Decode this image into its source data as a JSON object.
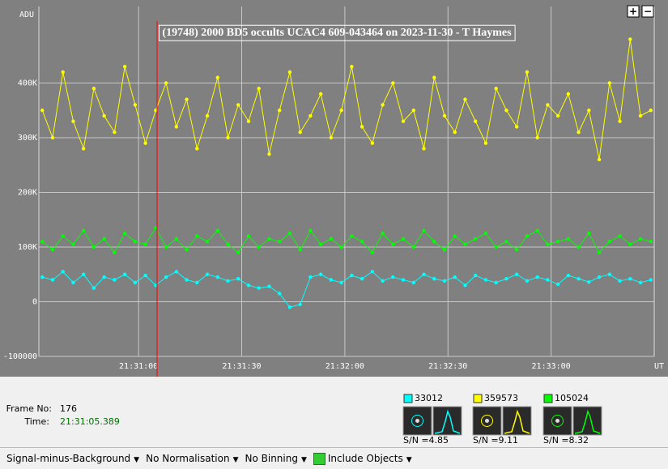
{
  "chart_data": {
    "type": "line",
    "title": "(19748) 2000 BD5 occults UCAC4 609-043464  on  2023-11-30 - T Haymes",
    "y_label": "ADU",
    "x_label": "UT",
    "x": [
      77432,
      77435,
      77438,
      77441,
      77444,
      77447,
      77450,
      77453,
      77456,
      77459,
      77462,
      77465,
      77468,
      77471,
      77474,
      77477,
      77480,
      77483,
      77486,
      77489,
      77492,
      77495,
      77498,
      77501,
      77504,
      77507,
      77510,
      77513,
      77516,
      77519,
      77522,
      77525,
      77528,
      77531,
      77534,
      77537,
      77540,
      77543,
      77546,
      77549,
      77552,
      77555,
      77558,
      77561,
      77564,
      77567,
      77570,
      77573,
      77576,
      77579,
      77582,
      77585,
      77588,
      77591,
      77594,
      77597,
      77600,
      77603,
      77606,
      77609
    ],
    "series": [
      {
        "name": "33012",
        "color": "#00ffff",
        "values": [
          45000,
          40000,
          55000,
          35000,
          50000,
          25000,
          45000,
          40000,
          50000,
          35000,
          48000,
          30000,
          45000,
          55000,
          40000,
          35000,
          50000,
          45000,
          38000,
          42000,
          30000,
          25000,
          28000,
          15000,
          -10000,
          -5000,
          45000,
          50000,
          40000,
          35000,
          48000,
          42000,
          55000,
          38000,
          45000,
          40000,
          35000,
          50000,
          42000,
          38000,
          45000,
          30000,
          48000,
          40000,
          35000,
          42000,
          50000,
          38000,
          45000,
          40000,
          32000,
          48000,
          42000,
          36000,
          45000,
          50000,
          38000,
          42000,
          35000,
          40000
        ]
      },
      {
        "name": "359573",
        "color": "#ffff00",
        "values": [
          350000,
          300000,
          420000,
          330000,
          280000,
          390000,
          340000,
          310000,
          430000,
          360000,
          290000,
          350000,
          400000,
          320000,
          370000,
          280000,
          340000,
          410000,
          300000,
          360000,
          330000,
          390000,
          270000,
          350000,
          420000,
          310000,
          340000,
          380000,
          300000,
          350000,
          430000,
          320000,
          290000,
          360000,
          400000,
          330000,
          350000,
          280000,
          410000,
          340000,
          310000,
          370000,
          330000,
          290000,
          390000,
          350000,
          320000,
          420000,
          300000,
          360000,
          340000,
          380000,
          310000,
          350000,
          260000,
          400000,
          330000,
          480000,
          340000,
          350000
        ]
      },
      {
        "name": "105024",
        "color": "#00ff00",
        "values": [
          110000,
          95000,
          120000,
          105000,
          130000,
          100000,
          115000,
          90000,
          125000,
          110000,
          105000,
          135000,
          100000,
          115000,
          95000,
          120000,
          110000,
          130000,
          105000,
          90000,
          120000,
          100000,
          115000,
          110000,
          125000,
          95000,
          130000,
          105000,
          115000,
          100000,
          120000,
          110000,
          90000,
          125000,
          105000,
          115000,
          100000,
          130000,
          110000,
          95000,
          120000,
          105000,
          115000,
          125000,
          100000,
          110000,
          95000,
          120000,
          130000,
          105000,
          110000,
          115000,
          100000,
          125000,
          90000,
          110000,
          120000,
          105000,
          115000,
          110000
        ]
      }
    ],
    "xlim": [
      77431,
      77610
    ],
    "xticks": [
      {
        "value": 77460,
        "label": "21:31:00"
      },
      {
        "value": 77490,
        "label": "21:31:30"
      },
      {
        "value": 77520,
        "label": "21:32:00"
      },
      {
        "value": 77550,
        "label": "21:32:30"
      },
      {
        "value": 77580,
        "label": "21:33:00"
      }
    ],
    "ylim": [
      -100000,
      540000
    ],
    "yticks": [
      -100000,
      0,
      {
        "value": 100000,
        "label": "100K"
      },
      {
        "value": 200000,
        "label": "200K"
      },
      {
        "value": 300000,
        "label": "300K"
      },
      {
        "value": 400000,
        "label": "400K"
      }
    ],
    "grid": true,
    "marker_x": 77465.389,
    "marker_color": "#ff0000"
  },
  "panel": {
    "frame_label": "Frame No:",
    "frame": 176,
    "time_label": "Time:",
    "time": "21:31:05.389",
    "snr_label": "S/N =",
    "snr": [
      4.85,
      9.11,
      8.32
    ]
  },
  "zoom": {
    "in": "+",
    "out": "−"
  },
  "toolbar": [
    "Signal-minus-Background",
    "No Normalisation",
    "No Binning",
    "Include Objects"
  ]
}
